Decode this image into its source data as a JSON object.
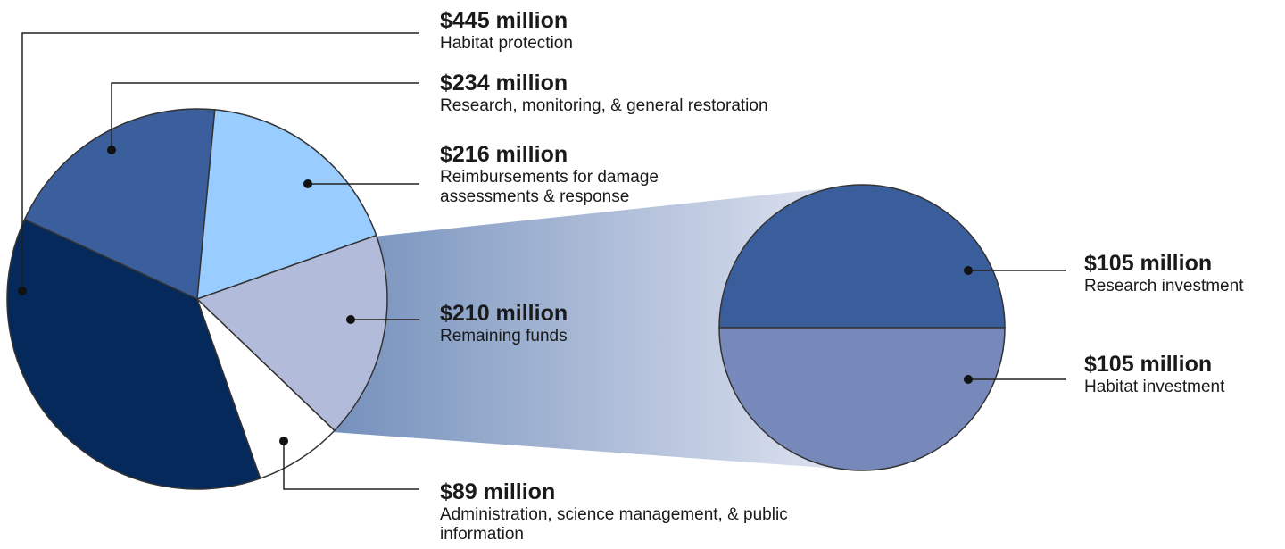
{
  "chart_data": [
    {
      "type": "pie",
      "categories": [
        "Habitat protection",
        "Research, monitoring, & general restoration",
        "Reimbursements for damage assessments & response",
        "Remaining funds",
        "Administration, science management, & public information"
      ],
      "values": [
        445,
        234,
        216,
        210,
        89
      ],
      "value_labels": [
        "$445 million",
        "$234 million",
        "$216 million",
        "$210 million",
        "$89 million"
      ],
      "colors": [
        "#04295a",
        "#3a5f9c",
        "#99ccff",
        "#b3bbdb",
        "#ffffff"
      ]
    },
    {
      "type": "pie",
      "categories": [
        "Research investment",
        "Habitat investment"
      ],
      "values": [
        105,
        105
      ],
      "value_labels": [
        "$105 million",
        "$105 million"
      ],
      "colors": [
        "#3a5e9c",
        "#7788ba"
      ]
    }
  ]
}
